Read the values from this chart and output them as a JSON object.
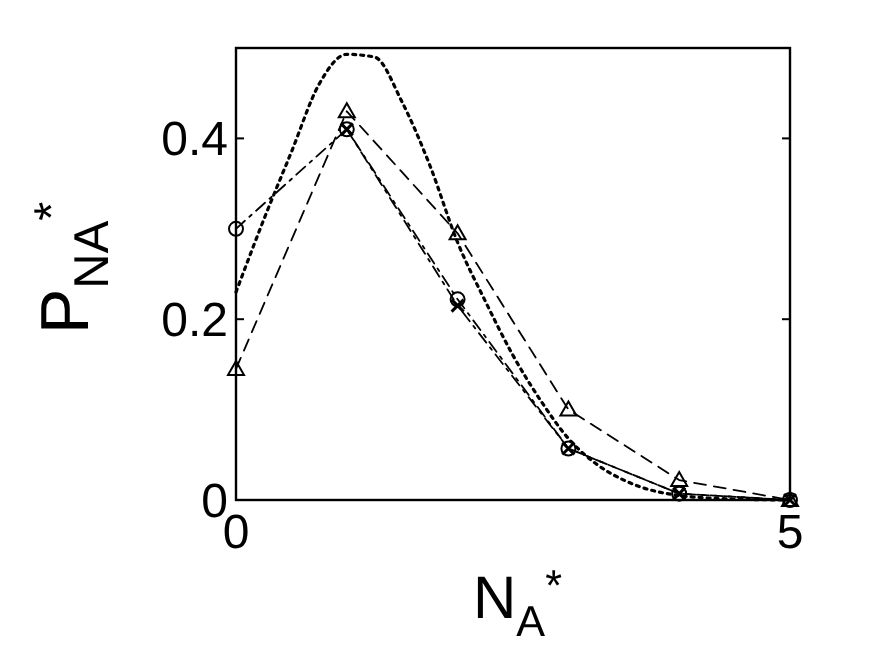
{
  "chart_data": {
    "type": "line",
    "xlabel": "N$_{A}$$^{*}$",
    "ylabel": "P$_{N}$$_{A}$$^{*}$",
    "xlim": [
      0,
      5
    ],
    "xticks": [
      0,
      5
    ],
    "ylim": [
      0,
      0.5
    ],
    "yticks": [
      0,
      0.2,
      0.4
    ],
    "grid": false,
    "series": [
      {
        "color": "#000000",
        "marker": "none",
        "line_style": "dotted",
        "x": [
          0,
          0.25,
          0.5,
          0.75,
          1,
          1.25,
          1.5,
          1.75,
          2,
          2.25,
          2.5,
          2.75,
          3,
          3.25,
          3.5,
          4,
          4.5,
          5
        ],
        "values": [
          0.23,
          0.31,
          0.385,
          0.46,
          0.493,
          0.49,
          0.44,
          0.37,
          0.285,
          0.22,
          0.16,
          0.11,
          0.068,
          0.04,
          0.022,
          0.005,
          0.001,
          0
        ]
      },
      {
        "color": "#000000",
        "marker": "triangle",
        "line_style": "dashed",
        "x": [
          0,
          1,
          2,
          3,
          4,
          5
        ],
        "values": [
          0.145,
          0.43,
          0.295,
          0.1,
          0.022,
          0
        ]
      },
      {
        "color": "#000000",
        "marker": "circle",
        "line_style": "dashdot",
        "x": [
          0,
          1,
          2,
          3,
          4,
          5
        ],
        "values": [
          0.3,
          0.41,
          0.222,
          0.057,
          0.007,
          0
        ]
      },
      {
        "color": "#000000",
        "marker": "cross",
        "line_style": "dashdot",
        "x": [
          1,
          2,
          3,
          4,
          5
        ],
        "values": [
          0.41,
          0.215,
          0.057,
          0.007,
          0
        ]
      }
    ]
  }
}
